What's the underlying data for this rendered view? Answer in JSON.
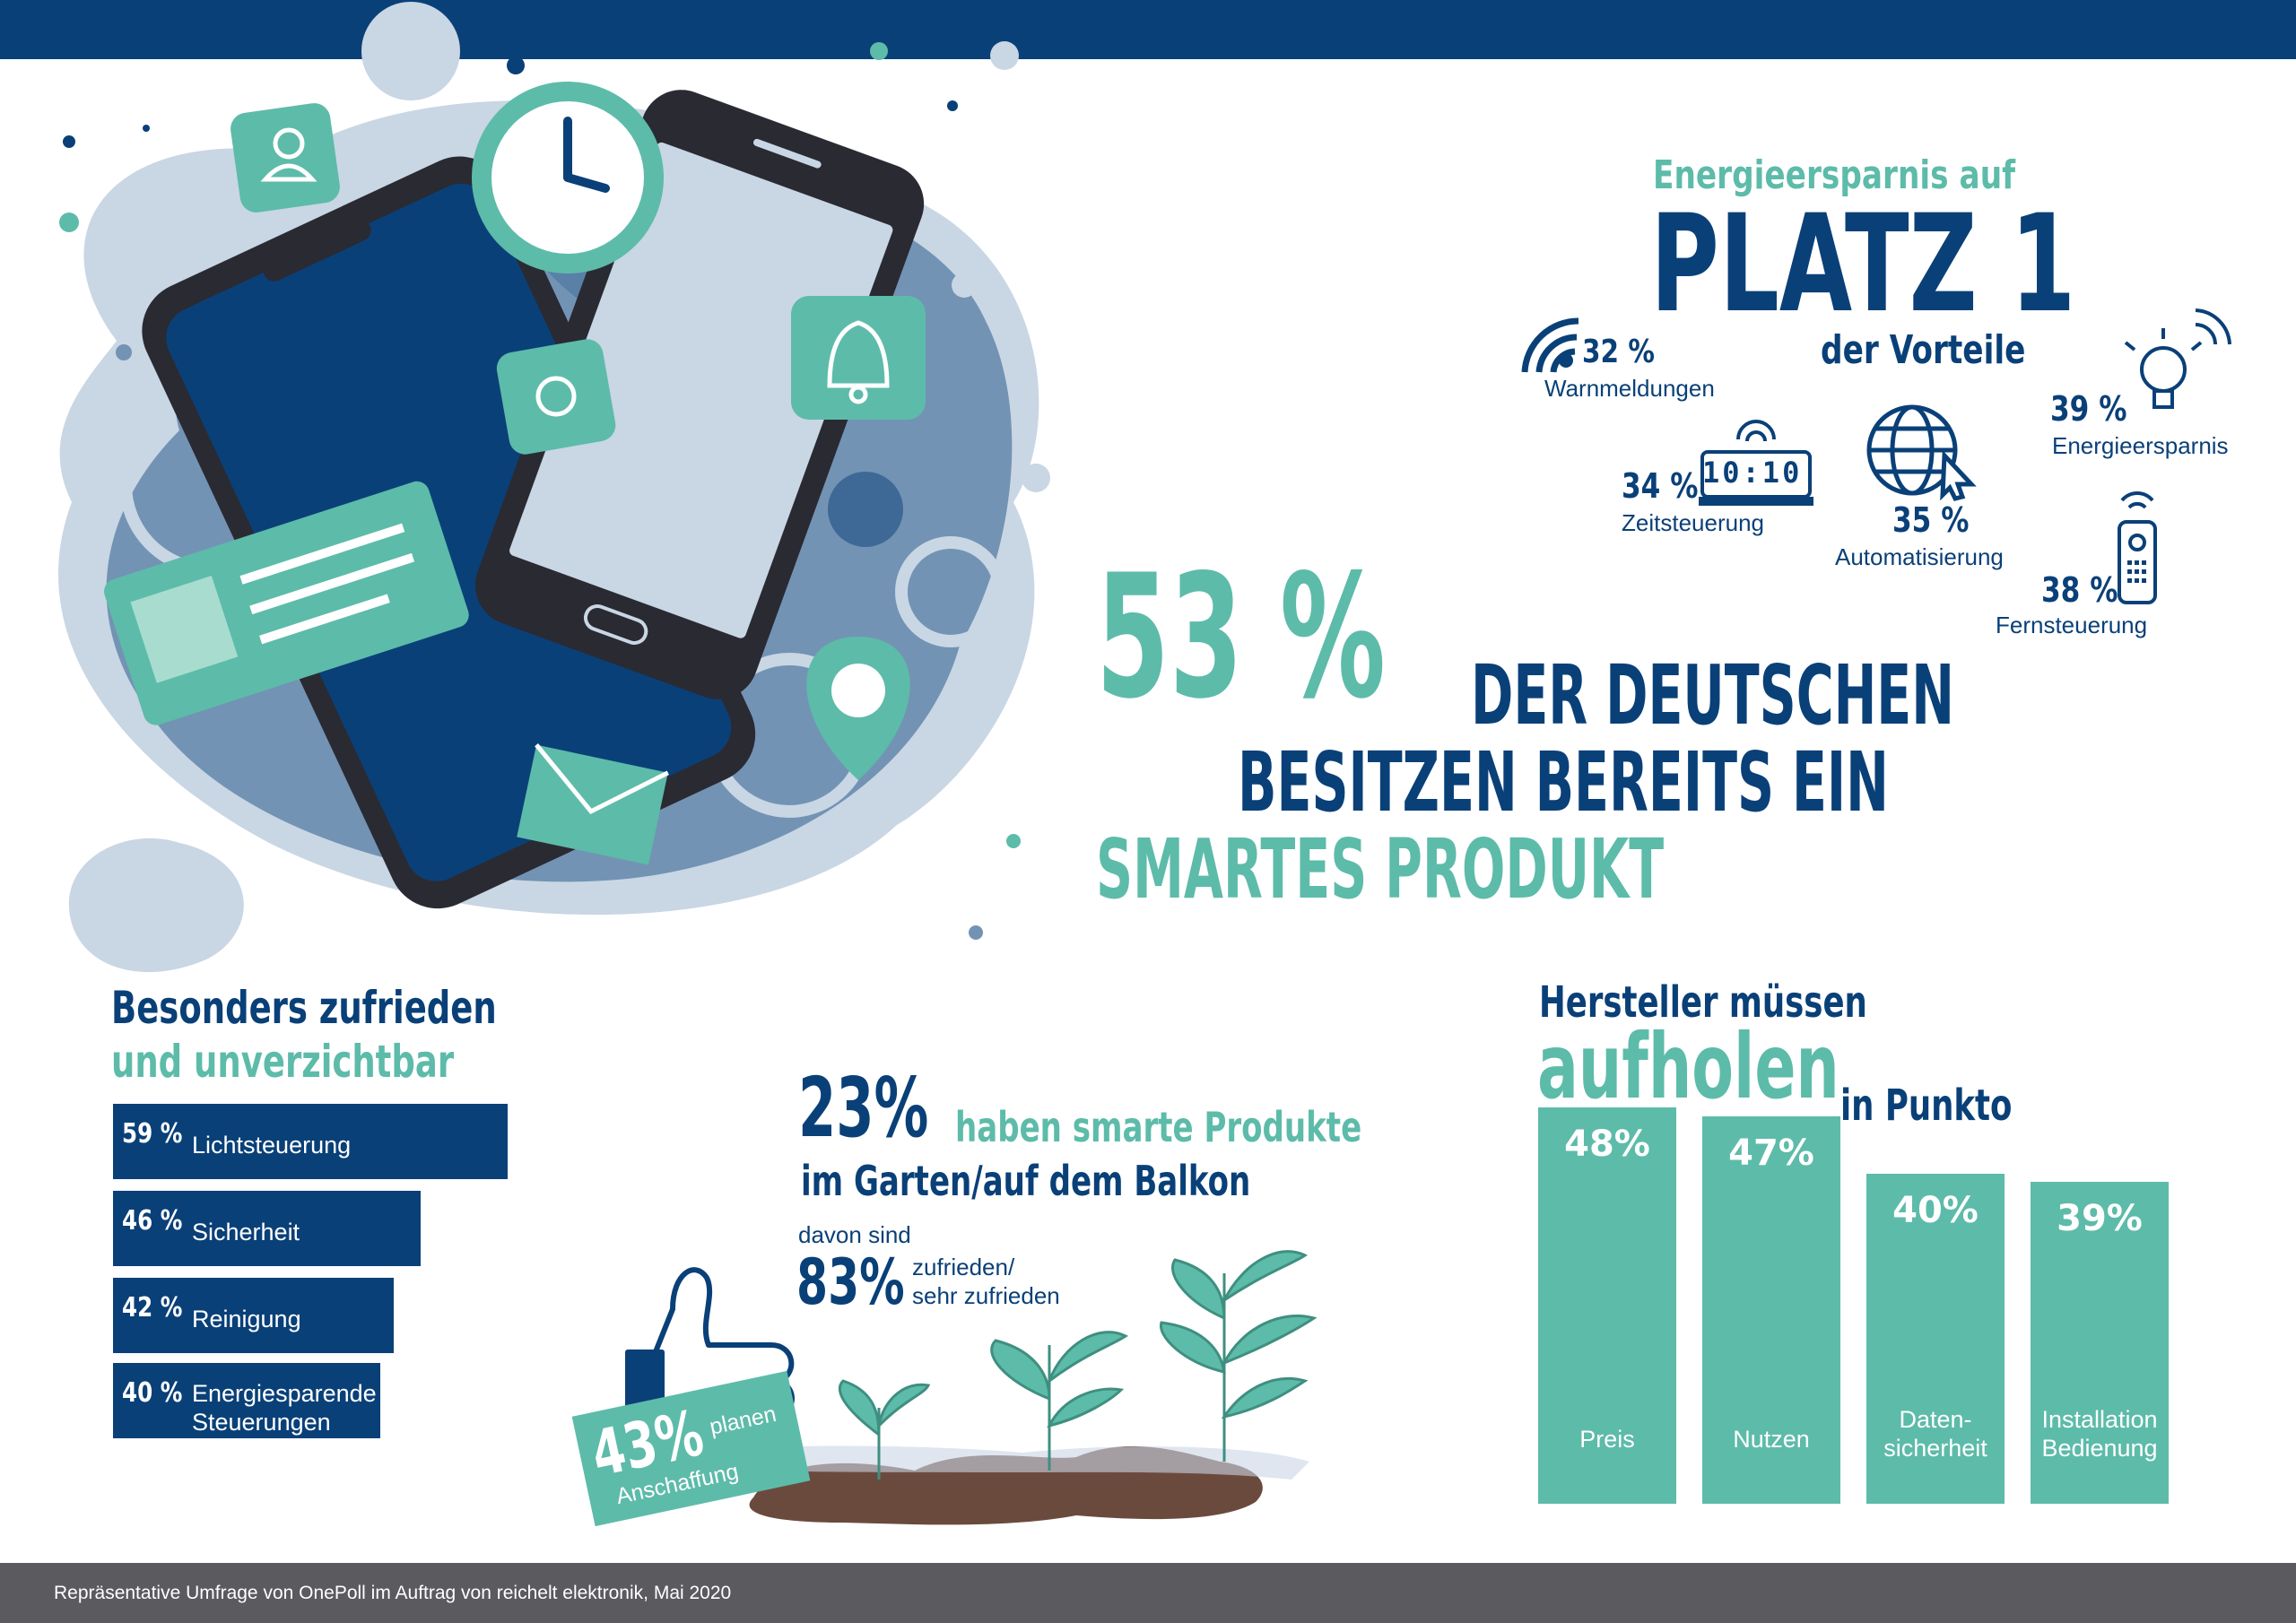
{
  "colors": {
    "navy": "#0a4078",
    "teal": "#5dbba9",
    "footer": "#5a5a5f",
    "light_blue": "#c9d6e4"
  },
  "icons": [
    "user-icon",
    "clock-icon",
    "bell-icon",
    "map-pin-icon",
    "mail-icon",
    "wifi-icon",
    "clock-display-icon",
    "globe-cursor-icon",
    "light-bulb-icon",
    "remote-control-icon",
    "thumbs-up-icon",
    "plant-icon"
  ],
  "hero": {
    "pct": "53 %",
    "line1": "DER DEUTSCHEN",
    "line2": "BESITZEN BEREITS EIN",
    "line3": "SMARTES PRODUKT"
  },
  "platz": {
    "kicker": "Energieersparnis auf",
    "title": "PLATZ 1",
    "sub": "der Vorteile"
  },
  "vorteile": [
    {
      "pct": "32 %",
      "label": "Warnmeldungen"
    },
    {
      "pct": "34 %",
      "label": "Zeitsteuerung",
      "display": "10:10"
    },
    {
      "pct": "35 %",
      "label": "Automatisierung"
    },
    {
      "pct": "39 %",
      "label": "Energieersparnis"
    },
    {
      "pct": "38 %",
      "label": "Fernsteuerung"
    }
  ],
  "garden": {
    "pct": "23%",
    "headline_teal": "haben smarte Produkte",
    "headline_navy": "im Garten/auf dem Balkon",
    "davon": "davon sind",
    "pct2": "83%",
    "zufrieden1": "zufrieden/",
    "zufrieden2": "sehr zufrieden",
    "badge_pct": "43%",
    "badge_word": "planen",
    "badge_word2": "Anschaffung"
  },
  "footer": "Repräsentative Umfrage von OnePoll im Auftrag von reichelt elektronik, Mai 2020",
  "chart_data": [
    {
      "type": "bar",
      "orientation": "horizontal",
      "title": "Besonders zufrieden",
      "subtitle": "und unverzichtbar",
      "categories": [
        "Lichtsteuerung",
        "Sicherheit",
        "Reinigung",
        "Energiesparende Steuerungen"
      ],
      "values": [
        59,
        46,
        42,
        40
      ],
      "value_labels": [
        "59 %",
        "46 %",
        "42 %",
        "40 %"
      ],
      "unit": "%"
    },
    {
      "type": "bar",
      "orientation": "vertical",
      "title": "Hersteller müssen",
      "title_big": "aufholen",
      "title_end": "in Punkto",
      "categories": [
        "Preis",
        "Nutzen",
        "Daten- sicherheit",
        "Installation Bedienung"
      ],
      "category_lines": [
        [
          "Preis"
        ],
        [
          "Nutzen"
        ],
        [
          "Daten-",
          "sicherheit"
        ],
        [
          "Installation",
          "Bedienung"
        ]
      ],
      "values": [
        48,
        47,
        40,
        39
      ],
      "value_labels": [
        "48%",
        "47%",
        "40%",
        "39%"
      ],
      "unit": "%"
    }
  ]
}
